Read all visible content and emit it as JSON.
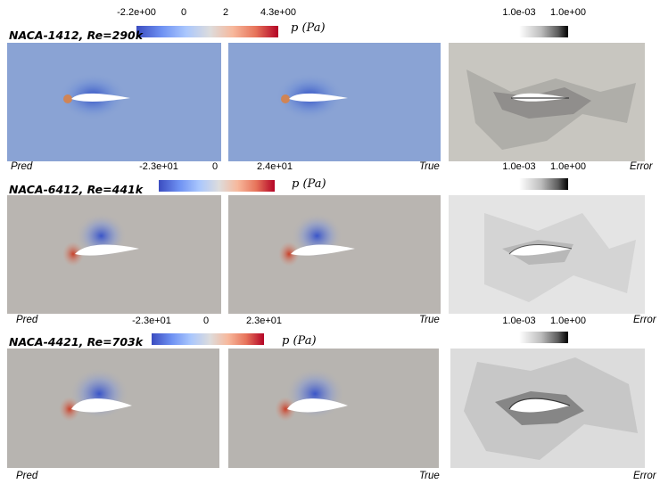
{
  "rows": [
    {
      "title": "NACA-1412, Re=290k",
      "pressure_colorbar": {
        "ticks": [
          "-2.2e+00",
          "0",
          "2",
          "4.3e+00"
        ]
      },
      "error_colorbar": {
        "ticks": [
          "1.0e-03",
          "1.0e+00"
        ]
      },
      "unit_label": "p (Pa)",
      "labels": {
        "pred": "Pred",
        "true": "True",
        "error": "Error"
      },
      "field_background": "#8aa3d4"
    },
    {
      "title": "NACA-6412, Re=441k",
      "pressure_colorbar": {
        "ticks": [
          "-2.3e+01",
          "0",
          "2.4e+01"
        ]
      },
      "error_colorbar": {
        "ticks": [
          "1.0e-03",
          "1.0e+00"
        ]
      },
      "unit_label": "p (Pa)",
      "labels": {
        "pred": "Pred",
        "true": "True",
        "error": "Error"
      },
      "field_background": "#b9b5b1"
    },
    {
      "title": "NACA-4421, Re=703k",
      "pressure_colorbar": {
        "ticks": [
          "-2.3e+01",
          "0",
          "2.3e+01"
        ]
      },
      "error_colorbar": {
        "ticks": [
          "1.0e-03",
          "1.0e+00"
        ]
      },
      "unit_label": "p (Pa)",
      "labels": {
        "pred": "Pred",
        "true": "True",
        "error": "Error"
      },
      "field_background": "#b7b4b0"
    }
  ],
  "colors": {
    "suction": "#3b55c9",
    "stagnation": "#c8402a",
    "error_dark": "#3a3a3a"
  }
}
